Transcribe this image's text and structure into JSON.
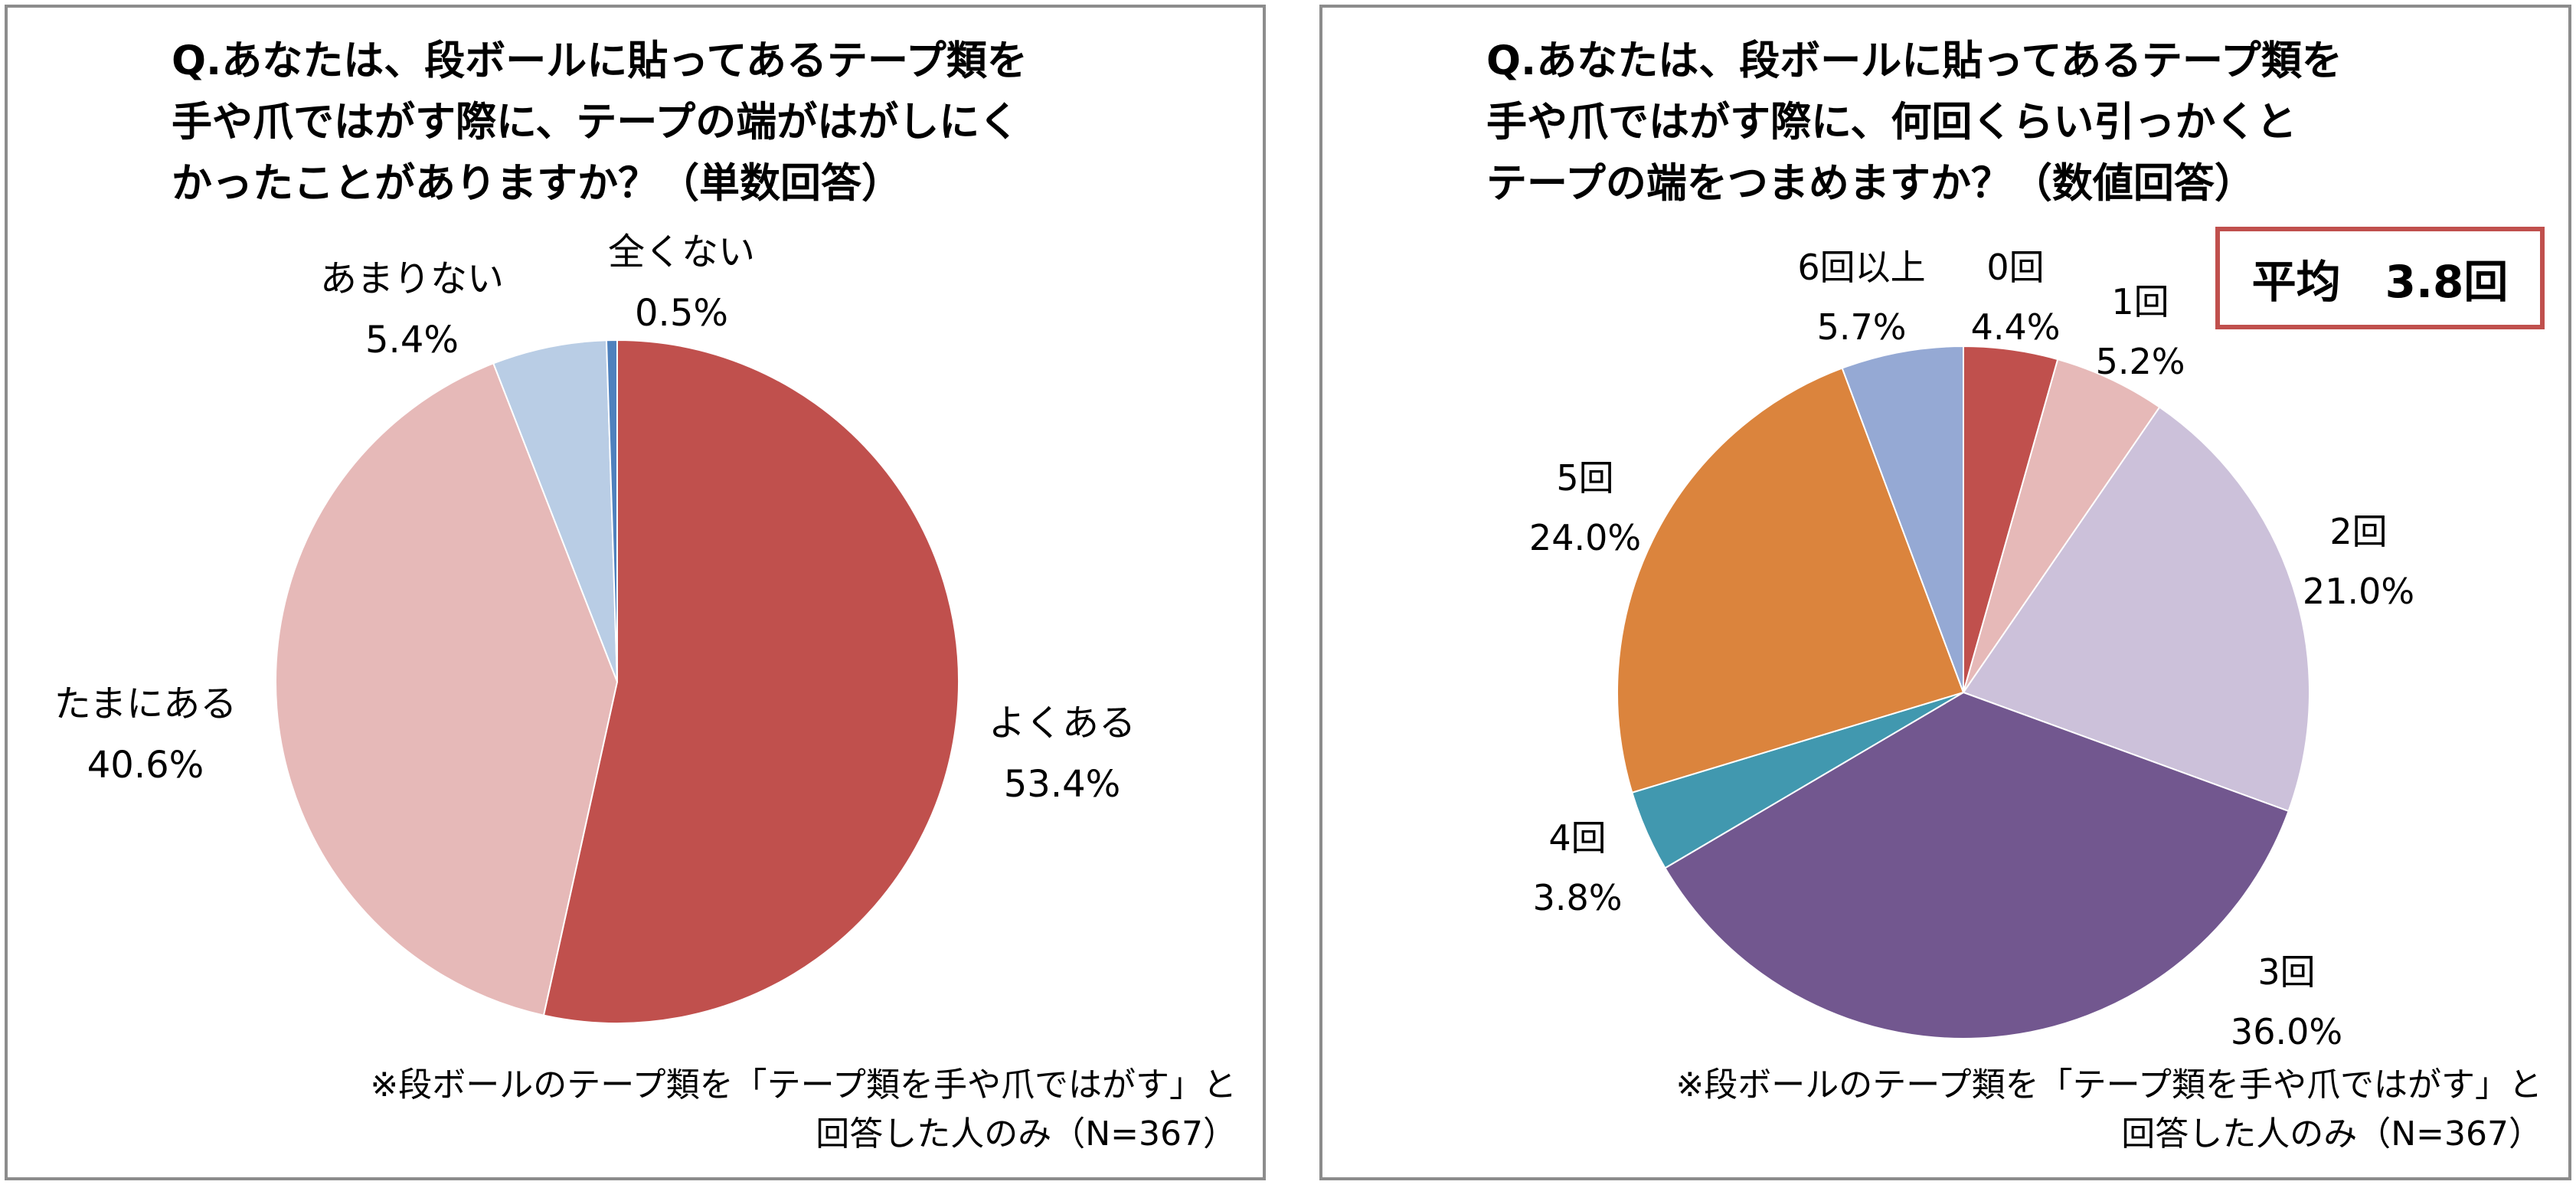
{
  "chart_data": [
    {
      "type": "pie",
      "title_lines": [
        "Q.あなたは、段ボールに貼ってあるテープ類を",
        "手や爪ではがす際に、テープの端がはがしにく",
        "かったことがありますか？（単数回答）"
      ],
      "note_lines": [
        "※段ボールのテープ類を「テープ類を手や爪ではがす」と",
        "回答した人のみ（N=367）"
      ],
      "slices": [
        {
          "label": "よくある",
          "value": 53.4,
          "display": "53.4%",
          "color": "#c0504d"
        },
        {
          "label": "たまにある",
          "value": 40.6,
          "display": "40.6%",
          "color": "#e6b9b8"
        },
        {
          "label": "あまりない",
          "value": 5.4,
          "display": "5.4%",
          "color": "#b9cde5"
        },
        {
          "label": "全くない",
          "value": 0.5,
          "display": "0.5%",
          "color": "#4f81bd"
        }
      ]
    },
    {
      "type": "pie",
      "title_lines": [
        "Q.あなたは、段ボールに貼ってあるテープ類を",
        "手や爪ではがす際に、何回くらい引っかくと",
        "テープの端をつまめますか？（数値回答）"
      ],
      "note_lines": [
        "※段ボールのテープ類を「テープ類を手や爪ではがす」と",
        "回答した人のみ（N=367）"
      ],
      "average_label": "平均　3.8回",
      "slices": [
        {
          "label": "0回",
          "value": 4.4,
          "display": "4.4%",
          "color": "#c0504d"
        },
        {
          "label": "1回",
          "value": 5.2,
          "display": "5.2%",
          "color": "#e6b9b8"
        },
        {
          "label": "2回",
          "value": 21.0,
          "display": "21.0%",
          "color": "#ccc1da"
        },
        {
          "label": "3回",
          "value": 36.0,
          "display": "36.0%",
          "color": "#72578f"
        },
        {
          "label": "4回",
          "value": 3.8,
          "display": "3.8%",
          "color": "#4198af"
        },
        {
          "label": "5回",
          "value": 24.0,
          "display": "24.0%",
          "color": "#db843d"
        },
        {
          "label": "6回以上",
          "value": 5.7,
          "display": "5.7%",
          "color": "#95a9d4"
        }
      ]
    }
  ]
}
